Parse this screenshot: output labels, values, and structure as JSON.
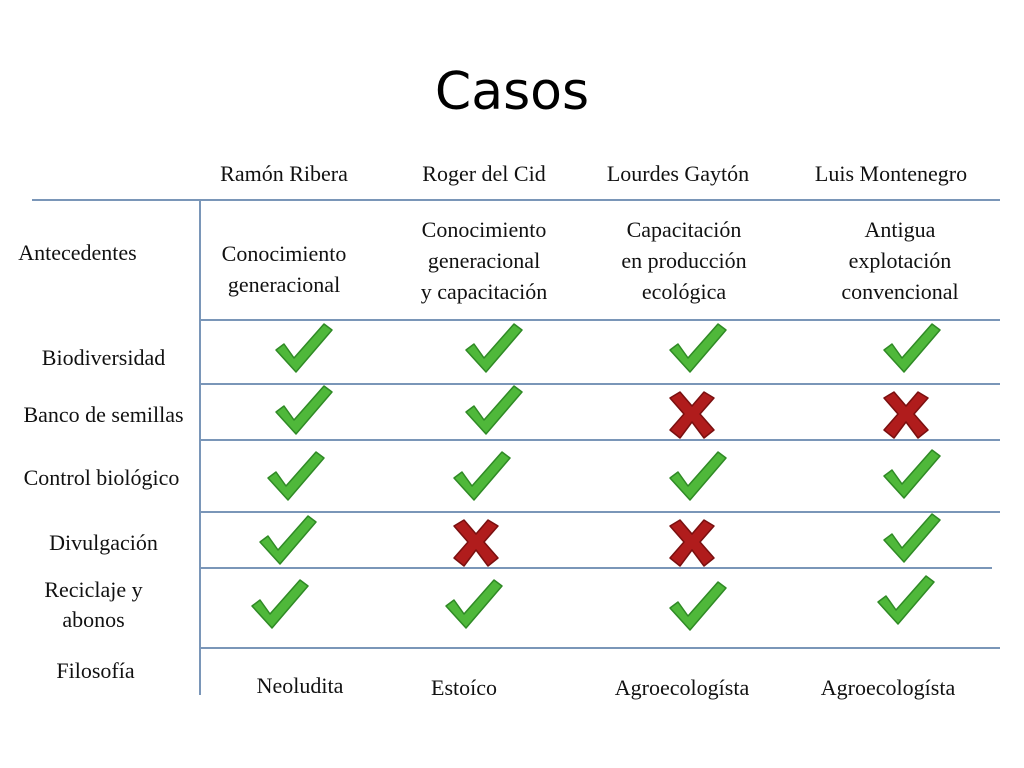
{
  "title": "Casos",
  "columns": [
    "Ramón Ribera",
    "Roger del Cid",
    "Lourdes Gaytón",
    "Luis Montenegro"
  ],
  "rows": {
    "antecedentes": "Antecedentes",
    "biodiversidad": "Biodiversidad",
    "banco": "Banco de semillas",
    "control": "Control biológico",
    "divulgacion": "Divulgación",
    "reciclaje": [
      "Reciclaje y",
      "abonos"
    ],
    "filosofia": "Filosofía"
  },
  "antecedentes": [
    [
      "Conocimiento",
      "generacional"
    ],
    [
      "Conocimiento",
      "generacional",
      "y capacitación"
    ],
    [
      "Capacitación",
      "en producción",
      "ecológica"
    ],
    [
      "Antigua",
      "explotación",
      "convencional"
    ]
  ],
  "matrix": {
    "biodiversidad": [
      "yes",
      "yes",
      "yes",
      "yes"
    ],
    "banco": [
      "yes",
      "yes",
      "no",
      "no"
    ],
    "control": [
      "yes",
      "yes",
      "yes",
      "yes"
    ],
    "divulgacion": [
      "yes",
      "no",
      "no",
      "yes"
    ],
    "reciclaje": [
      "yes",
      "yes",
      "yes",
      "yes"
    ]
  },
  "filosofia": [
    "Neoludita",
    "Estoíco",
    "Agroecologísta",
    "Agroecologísta"
  ],
  "colors": {
    "check": "#4fb83a",
    "cross": "#b01c1c",
    "rule": "#7a96b8"
  }
}
